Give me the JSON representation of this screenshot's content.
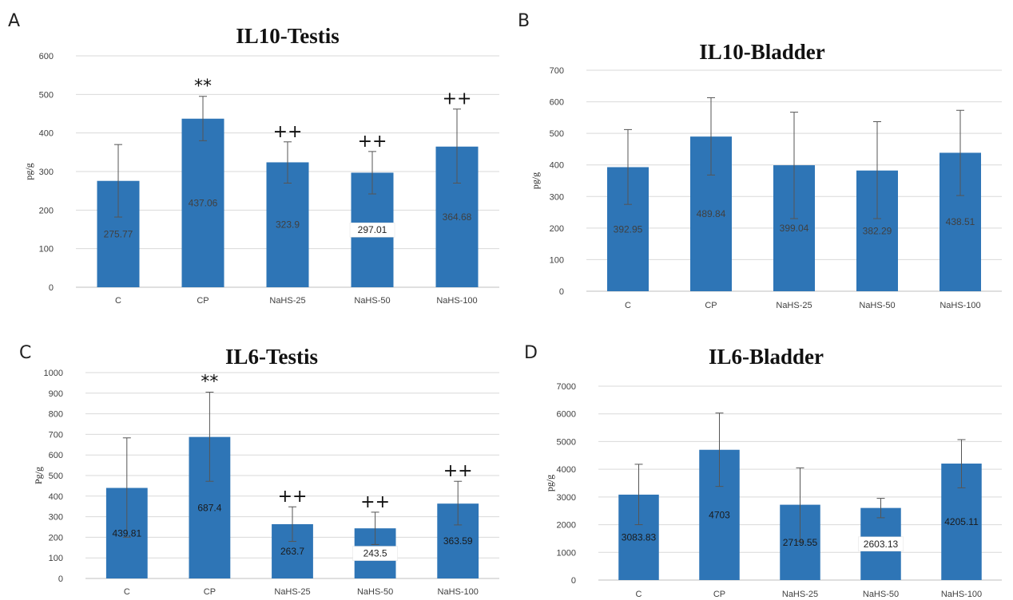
{
  "chart_data": [
    {
      "panel": "A",
      "type": "bar",
      "title": "IL10-Testis",
      "ylabel": "pg/g",
      "categories": [
        "C",
        "CP",
        "NaHS-25",
        "NaHS-50",
        "NaHS-100"
      ],
      "values": [
        275.77,
        437.06,
        323.9,
        297.01,
        364.68
      ],
      "value_labels": [
        "275.77",
        "437.06",
        "323.9",
        "297.01",
        "364.68"
      ],
      "error_high": [
        370,
        495,
        377,
        352,
        462
      ],
      "error_low": [
        182,
        380,
        270,
        242,
        270
      ],
      "significance": [
        "",
        "**",
        "++",
        "++",
        "++"
      ],
      "ylim": [
        0,
        600
      ],
      "yticks": [
        0,
        100,
        200,
        300,
        400,
        500,
        600
      ],
      "grid": true,
      "bar_color": "#2e75b6"
    },
    {
      "panel": "B",
      "type": "bar",
      "title": "IL10-Bladder",
      "ylabel": "pg/g",
      "categories": [
        "C",
        "CP",
        "NaHS-25",
        "NaHS-50",
        "NaHS-100"
      ],
      "values": [
        392.95,
        489.84,
        399.04,
        382.29,
        438.51
      ],
      "value_labels": [
        "392.95",
        "489.84",
        "399.04",
        "382.29",
        "438.51"
      ],
      "error_high": [
        512,
        613,
        567,
        537,
        573
      ],
      "error_low": [
        275,
        368,
        230,
        230,
        303
      ],
      "significance": [
        "",
        "",
        "",
        "",
        ""
      ],
      "ylim": [
        0,
        700
      ],
      "yticks": [
        0,
        100,
        200,
        300,
        400,
        500,
        600,
        700
      ],
      "grid": true,
      "bar_color": "#2e75b6"
    },
    {
      "panel": "C",
      "type": "bar",
      "title": "IL6-Testis",
      "ylabel": "Pg/g",
      "categories": [
        "C",
        "CP",
        "NaHS-25",
        "NaHS-50",
        "NaHS-100"
      ],
      "values": [
        439.81,
        687.4,
        263.7,
        243.5,
        363.59
      ],
      "value_labels": [
        "439.81",
        "687.4",
        "263.7",
        "243.5",
        "363.59"
      ],
      "error_high": [
        683,
        905,
        348,
        322,
        472
      ],
      "error_low": [
        200,
        472,
        180,
        165,
        260
      ],
      "significance": [
        "",
        "**",
        "++",
        "++",
        "++"
      ],
      "ylim": [
        0,
        1000
      ],
      "yticks": [
        0,
        100,
        200,
        300,
        400,
        500,
        600,
        700,
        800,
        900,
        1000
      ],
      "grid": true,
      "bar_color": "#2e75b6"
    },
    {
      "panel": "D",
      "type": "bar",
      "title": "IL6-Bladder",
      "ylabel": "pg/g",
      "categories": [
        "C",
        "CP",
        "NaHS-25",
        "NaHS-50",
        "NaHS-100"
      ],
      "values": [
        3083.83,
        4703,
        2719.55,
        2603.13,
        4205.11
      ],
      "value_labels": [
        "3083.83",
        "4703",
        "2719.55",
        "2603.13",
        "4205.11"
      ],
      "error_high": [
        4180,
        6030,
        4050,
        2950,
        5070
      ],
      "error_low": [
        2000,
        3380,
        1400,
        2250,
        3330
      ],
      "significance": [
        "",
        "",
        "",
        "",
        ""
      ],
      "ylim": [
        0,
        7000
      ],
      "yticks": [
        0,
        1000,
        2000,
        3000,
        4000,
        5000,
        6000,
        7000
      ],
      "grid": true,
      "bar_color": "#2e75b6"
    }
  ]
}
